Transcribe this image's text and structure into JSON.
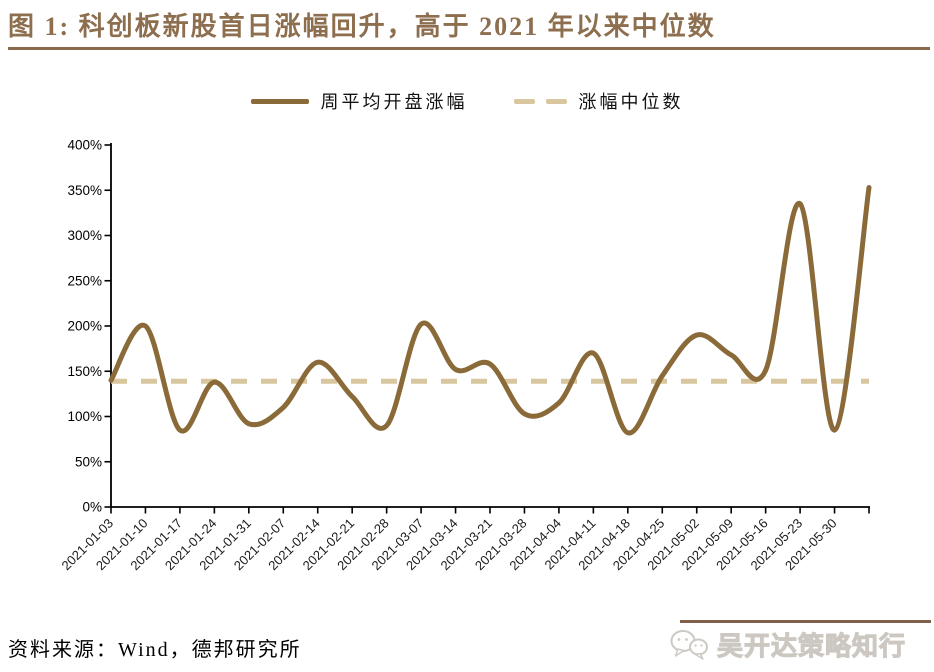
{
  "header": {
    "title": "图 1:  科创板新股首日涨幅回升，高于 2021 年以来中位数"
  },
  "footer": {
    "source": "资料来源：Wind，德邦研究所"
  },
  "watermark": {
    "text": "吴开达策略知行",
    "icon": "wechat-speech-bubbles-icon"
  },
  "colors": {
    "title_brown": "#8d6e4e",
    "rule_brown": "#8a6a49",
    "series_line_brown": "#8a6a38",
    "median_dash_tan": "#d8c79e",
    "axis_black": "#000000",
    "watermark_gray": "#dcd8d2"
  },
  "chart_data": {
    "type": "line",
    "title": "图 1: 科创板新股首日涨幅回升，高于 2021 年以来中位数",
    "xlabel": "",
    "ylabel": "",
    "ylim": [
      0,
      400
    ],
    "ytick_step": 50,
    "ytick_suffix": "%",
    "grid": false,
    "legend_position": "top",
    "x_label_rotation": -45,
    "categories": [
      "2021-01-03",
      "2021-01-10",
      "2021-01-17",
      "2021-01-24",
      "2021-01-31",
      "2021-02-07",
      "2021-02-14",
      "2021-02-21",
      "2021-02-28",
      "2021-03-07",
      "2021-03-14",
      "2021-03-21",
      "2021-03-28",
      "2021-04-04",
      "2021-04-11",
      "2021-04-18",
      "2021-04-25",
      "2021-05-02",
      "2021-05-09",
      "2021-05-16",
      "2021-05-23",
      "2021-05-30",
      ""
    ],
    "series": [
      {
        "name": "周平均开盘涨幅",
        "type": "spline",
        "color": "#8a6a38",
        "values": [
          140,
          200,
          85,
          138,
          92,
          110,
          160,
          122,
          90,
          202,
          152,
          158,
          103,
          115,
          170,
          82,
          145,
          190,
          168,
          151,
          335,
          85,
          353
        ]
      },
      {
        "name": "涨幅中位数",
        "type": "constant",
        "dashed": true,
        "color": "#d8c79e",
        "value": 139
      }
    ]
  }
}
